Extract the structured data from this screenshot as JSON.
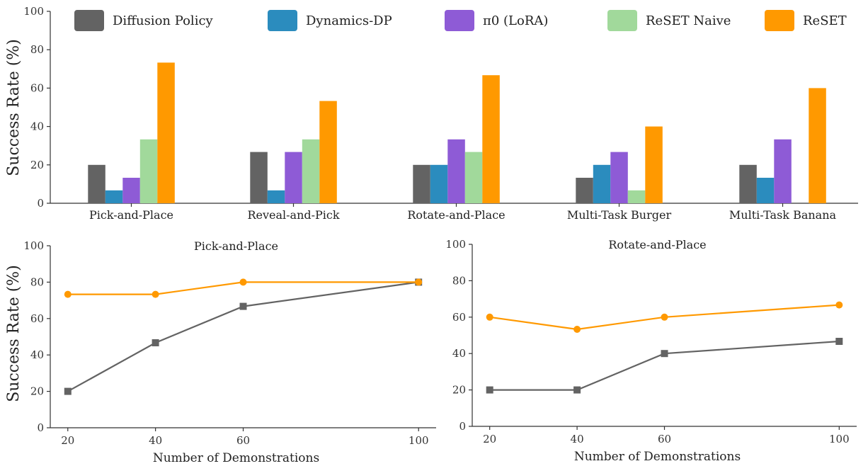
{
  "legend": {
    "entries": [
      {
        "label": "Diffusion Policy",
        "color": "#636363"
      },
      {
        "label": "Dynamics-DP",
        "color": "#2b8cbe"
      },
      {
        "label": "π0 (LoRA)",
        "color": "#8e5bd6"
      },
      {
        "label": "ReSET Naive",
        "color": "#a1d99b"
      },
      {
        "label": "ReSET",
        "color": "#ff9900"
      }
    ]
  },
  "shared_ylabel": "Success Rate (%)",
  "chart_data": [
    {
      "type": "bar",
      "ylabel": "Success Rate (%)",
      "ylim": [
        0,
        100
      ],
      "yticks": [
        "0",
        "20",
        "40",
        "60",
        "80",
        "100"
      ],
      "categories": [
        "Pick-and-Place",
        "Reveal-and-Pick",
        "Rotate-and-Place",
        "Multi-Task Burger",
        "Multi-Task Banana"
      ],
      "series": [
        {
          "name": "Diffusion Policy",
          "color": "#636363",
          "values": [
            20,
            26.7,
            20,
            13.3,
            20
          ]
        },
        {
          "name": "Dynamics-DP",
          "color": "#2b8cbe",
          "values": [
            6.7,
            6.7,
            20,
            20,
            13.3
          ]
        },
        {
          "name": "π0 (LoRA)",
          "color": "#8e5bd6",
          "values": [
            13.3,
            26.7,
            33.3,
            26.7,
            33.3
          ]
        },
        {
          "name": "ReSET Naive",
          "color": "#a1d99b",
          "values": [
            33.3,
            33.3,
            26.7,
            6.7,
            0
          ]
        },
        {
          "name": "ReSET",
          "color": "#ff9900",
          "values": [
            73.3,
            53.3,
            66.7,
            40,
            60
          ]
        }
      ],
      "legend_position": "top"
    },
    {
      "type": "line",
      "title": "Pick-and-Place",
      "xlabel": "Number of Demonstrations",
      "ylabel": "Success Rate (%)",
      "x": [
        20,
        40,
        60,
        100
      ],
      "xticks": [
        "20",
        "40",
        "60",
        "100"
      ],
      "ylim": [
        0,
        100
      ],
      "yticks": [
        "0",
        "20",
        "40",
        "60",
        "80",
        "100"
      ],
      "series": [
        {
          "name": "ReSET",
          "color": "#ff9900",
          "marker": "circle",
          "values": [
            73.3,
            73.3,
            80,
            80
          ]
        },
        {
          "name": "Diffusion Policy",
          "color": "#636363",
          "marker": "square",
          "values": [
            20,
            46.7,
            66.7,
            80
          ]
        }
      ]
    },
    {
      "type": "line",
      "title": "Rotate-and-Place",
      "xlabel": "Number of Demonstrations",
      "x": [
        20,
        40,
        60,
        100
      ],
      "xticks": [
        "20",
        "40",
        "60",
        "100"
      ],
      "ylim": [
        0,
        100
      ],
      "yticks": [
        "0",
        "20",
        "40",
        "60",
        "80",
        "100"
      ],
      "series": [
        {
          "name": "ReSET",
          "color": "#ff9900",
          "marker": "circle",
          "values": [
            60,
            53.3,
            60,
            66.7
          ]
        },
        {
          "name": "Diffusion Policy",
          "color": "#636363",
          "marker": "square",
          "values": [
            20,
            20,
            40,
            46.7
          ]
        }
      ]
    }
  ]
}
